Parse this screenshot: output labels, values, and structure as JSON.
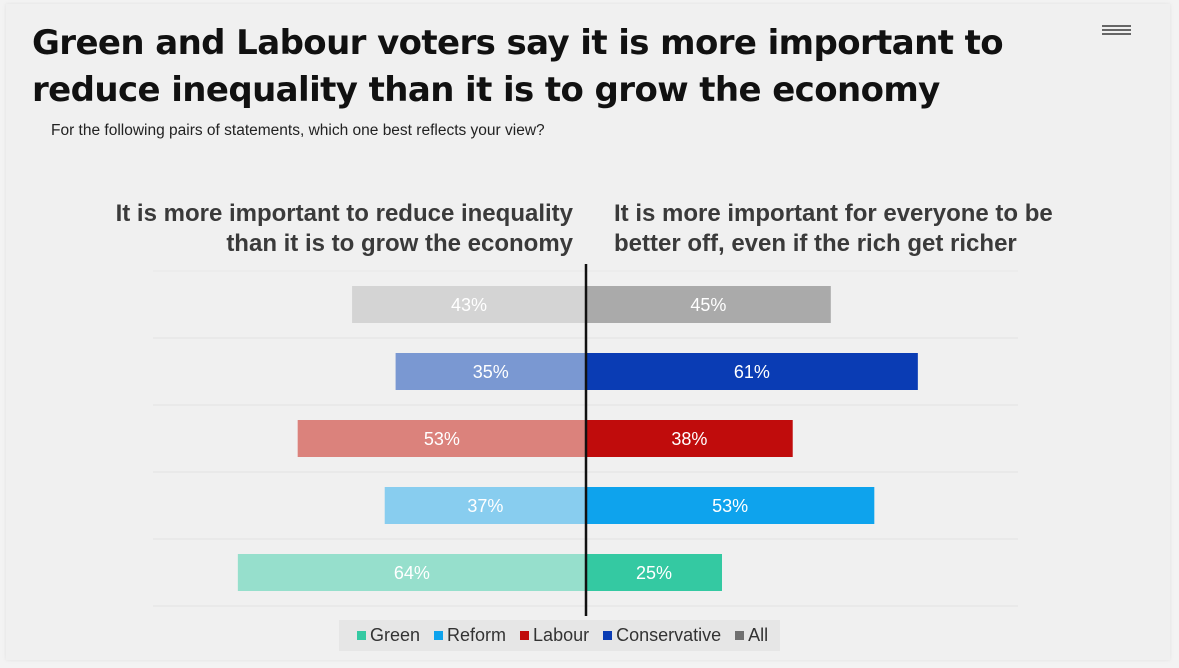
{
  "header": {
    "title": "Green and Labour voters say it is more important to reduce inequality than it is to grow the economy",
    "subtitle": "For the following pairs of statements, which one best reflects your view?",
    "menu_icon": "hamburger-menu-icon"
  },
  "chart_data": {
    "type": "bar",
    "orientation": "horizontal-diverging",
    "left_statement": "It is more important to reduce inequality than it is to grow the economy",
    "left_statement_lines": [
      "It is more important to reduce inequality",
      "than it is to grow the economy"
    ],
    "right_statement": "It is more important for everyone to be better off, even if the rich get richer",
    "right_statement_lines": [
      "It is more important for everyone to be",
      "better off, even if the rich get richer"
    ],
    "categories": [
      "All",
      "Conservative",
      "Labour",
      "Reform",
      "Green"
    ],
    "left_values": [
      43,
      35,
      53,
      37,
      64
    ],
    "right_values": [
      45,
      61,
      38,
      53,
      25
    ],
    "left_labels": [
      "43%",
      "35%",
      "53%",
      "37%",
      "64%"
    ],
    "right_labels": [
      "45%",
      "61%",
      "38%",
      "53%",
      "25%"
    ],
    "left_colors": [
      "#d4d4d4",
      "#7a98d2",
      "#db827c",
      "#88cdef",
      "#96dfcc"
    ],
    "right_colors": [
      "#aaaaaa",
      "#0a3cb4",
      "#c00c0c",
      "#0ea3ed",
      "#34c9a2"
    ],
    "unit": "%",
    "legend": [
      {
        "name": "Green",
        "color": "#34c9a2"
      },
      {
        "name": "Reform",
        "color": "#0ea3ed"
      },
      {
        "name": "Labour",
        "color": "#c00c0c"
      },
      {
        "name": "Conservative",
        "color": "#0a3cb4"
      },
      {
        "name": "All",
        "color": "#707070"
      }
    ]
  }
}
